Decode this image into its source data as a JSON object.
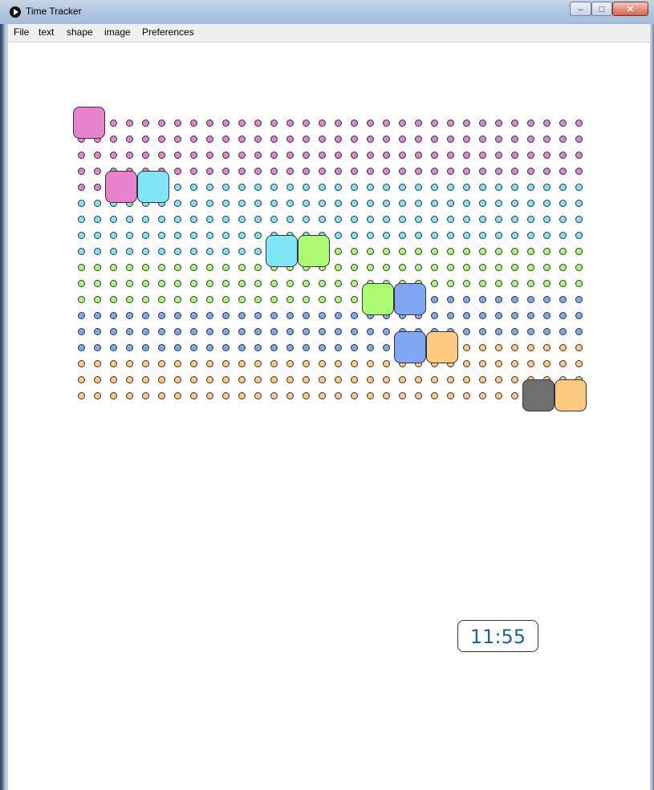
{
  "window": {
    "title": "Time Tracker",
    "controls": {
      "minimize": "–",
      "maximize": "□",
      "close": "✕"
    }
  },
  "menu": [
    {
      "label": "File"
    },
    {
      "label": "text"
    },
    {
      "label": "shape"
    },
    {
      "label": "image"
    },
    {
      "label": "Preferences"
    }
  ],
  "tracker": {
    "clock": "11:55",
    "colors": {
      "pink": "#e683cc",
      "cyan": "#7fe6f6",
      "green": "#adfb72",
      "blue": "#7fa7f5",
      "orange": "#fcca81",
      "gray": "#6f6f6f"
    },
    "rows_count": 18,
    "cols_count": 32,
    "segments": [
      {
        "color": "pink",
        "start": [
          0,
          0
        ],
        "end": [
          4,
          1
        ]
      },
      {
        "color": "cyan",
        "start": [
          4,
          4
        ],
        "end": [
          8,
          11
        ]
      },
      {
        "color": "green",
        "start": [
          8,
          14
        ],
        "end": [
          11,
          17
        ]
      },
      {
        "color": "blue",
        "start": [
          11,
          21
        ],
        "end": [
          14,
          19
        ]
      },
      {
        "color": "orange",
        "start": [
          14,
          22
        ],
        "end": [
          17,
          31
        ]
      }
    ],
    "blocks": [
      {
        "row": 0,
        "col": 0,
        "color": "pink"
      },
      {
        "row": 4,
        "col": 2,
        "color": "pink"
      },
      {
        "row": 4,
        "col": 4,
        "color": "cyan"
      },
      {
        "row": 8,
        "col": 12,
        "color": "cyan"
      },
      {
        "row": 8,
        "col": 14,
        "color": "green"
      },
      {
        "row": 11,
        "col": 18,
        "color": "green"
      },
      {
        "row": 11,
        "col": 20,
        "color": "blue"
      },
      {
        "row": 14,
        "col": 20,
        "color": "blue"
      },
      {
        "row": 14,
        "col": 22,
        "color": "orange"
      },
      {
        "row": 17,
        "col": 28,
        "color": "gray"
      },
      {
        "row": 17,
        "col": 30,
        "color": "orange"
      }
    ]
  }
}
